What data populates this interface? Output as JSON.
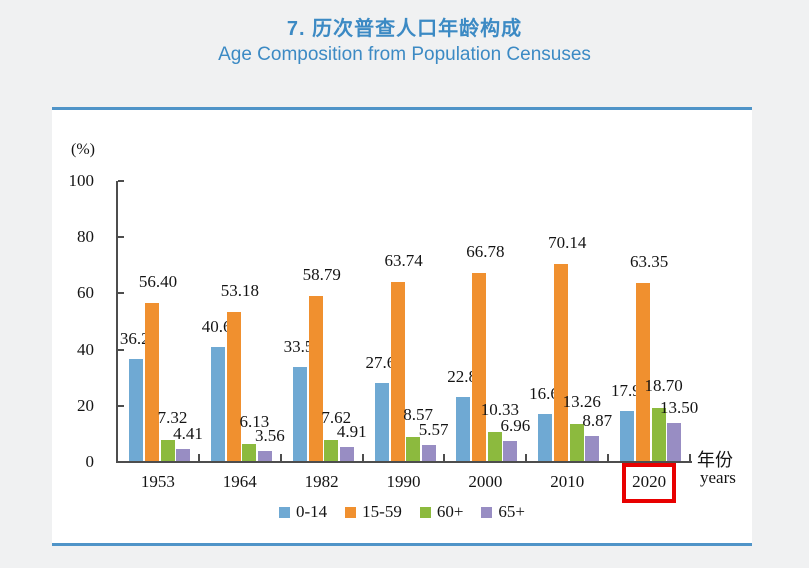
{
  "header": {
    "title_zh": "7. 历次普查人口年龄构成",
    "title_en": "Age Composition from Population Censuses",
    "title_color": "#3c8ac4"
  },
  "chart_data": {
    "type": "bar",
    "title": "7. 历次普查人口年龄构成 / Age Composition from Population Censuses",
    "unit_label": "(%)",
    "xlabel_zh": "年份",
    "xlabel_en": "years",
    "categories": [
      "1953",
      "1964",
      "1982",
      "1990",
      "2000",
      "2010",
      "2020"
    ],
    "series": [
      {
        "name": "0-14",
        "color": "#6fa9d3",
        "values": [
          36.28,
          40.69,
          33.59,
          27.69,
          22.89,
          16.6,
          17.95
        ]
      },
      {
        "name": "15-59",
        "color": "#f0902f",
        "values": [
          56.4,
          53.18,
          58.79,
          63.74,
          66.78,
          70.14,
          63.35
        ]
      },
      {
        "name": "60+",
        "color": "#8cba3e",
        "values": [
          7.32,
          6.13,
          7.62,
          8.57,
          10.33,
          13.26,
          18.7
        ]
      },
      {
        "name": "65+",
        "color": "#988dc3",
        "values": [
          4.41,
          3.56,
          4.91,
          5.57,
          6.96,
          8.87,
          13.5
        ]
      }
    ],
    "ylim": [
      0,
      100
    ],
    "yticks": [
      0,
      20,
      40,
      60,
      80,
      100
    ],
    "grid": "off",
    "legend_position": "bottom",
    "highlighted_category": "2020",
    "highlight_color": "#e80000",
    "axis_color": "#4d4d4d",
    "card_border_color": "#4f94c8"
  }
}
